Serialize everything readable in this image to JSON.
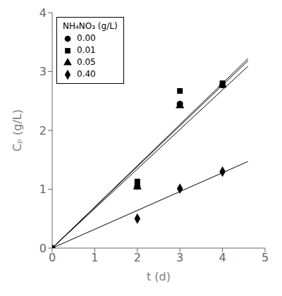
{
  "chart_data": {
    "type": "scatter",
    "x_label": "t (d)",
    "y_label": "Cₚ (g/L)",
    "legend_title": "NH₄NO₃ (g/L)",
    "legend": "upper left",
    "grid": false,
    "xlim": [
      0,
      5
    ],
    "ylim": [
      0,
      4
    ],
    "xticks": [
      0,
      1,
      2,
      3,
      4,
      5
    ],
    "yticks": [
      0,
      1,
      2,
      3,
      4
    ],
    "series": [
      {
        "name": "0.00",
        "marker": "circle",
        "color": "#000000",
        "x": [
          2,
          3,
          4
        ],
        "values": [
          1.05,
          2.45,
          2.77
        ],
        "line_x": [
          0,
          4.6
        ],
        "line_y": [
          0,
          3.1832
        ]
      },
      {
        "name": "0.01",
        "marker": "square",
        "color": "#000000",
        "x": [
          2,
          3,
          4
        ],
        "values": [
          1.13,
          2.67,
          2.8
        ],
        "line_x": [
          0,
          4.6
        ],
        "line_y": [
          0,
          3.22
        ]
      },
      {
        "name": "0.05",
        "marker": "triangle",
        "color": "#000000",
        "x": [
          2,
          3,
          4
        ],
        "values": [
          1.04,
          2.42,
          2.77
        ],
        "line_x": [
          0,
          4.6
        ],
        "line_y": [
          0,
          3.0912
        ]
      },
      {
        "name": "0.40",
        "marker": "diamond",
        "color": "#000000",
        "x": [
          2,
          3,
          4
        ],
        "values": [
          0.5,
          1.01,
          1.3
        ],
        "line_x": [
          0,
          4.6
        ],
        "line_y": [
          0,
          1.472
        ]
      }
    ],
    "origin": {
      "x": 0,
      "y": 0,
      "marker": "circle",
      "color": "#000000"
    }
  }
}
